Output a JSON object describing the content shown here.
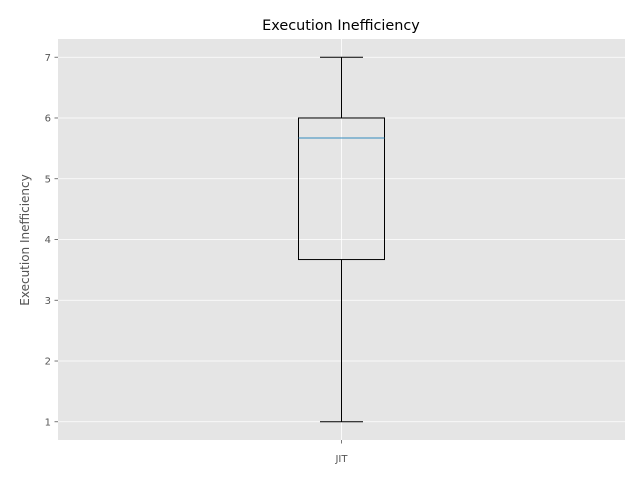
{
  "chart_data": {
    "type": "box",
    "title": "Execution Inefficiency",
    "xlabel": "",
    "ylabel": "Execution Inefficiency",
    "categories": [
      "JIT"
    ],
    "boxes": [
      {
        "name": "JIT",
        "whisker_low": 1,
        "q1": 3.67,
        "median": 5.67,
        "q3": 6,
        "whisker_high": 7
      }
    ],
    "ylim": [
      0.7,
      7.3
    ],
    "yticks": [
      1,
      2,
      3,
      4,
      5,
      6,
      7
    ],
    "grid": true,
    "legend": "none",
    "colors": {
      "background": "#e5e5e5",
      "grid": "#ffffff",
      "box": "#000000",
      "median": "#348abd"
    }
  }
}
